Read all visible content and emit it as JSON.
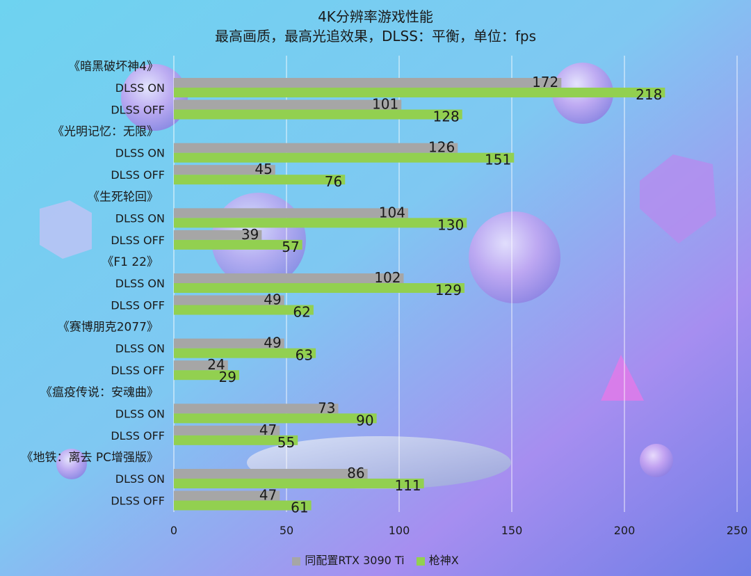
{
  "title": "4K分辨率游戏性能",
  "subtitle": "最高画质，最高光追效果，DLSS：平衡，单位：fps",
  "colors": {
    "series_a": "#a6a6a6",
    "series_b": "#92d050",
    "label_text": "#1a1a1a"
  },
  "chart_data": {
    "type": "bar",
    "orientation": "horizontal",
    "groups": [
      {
        "game": "《暗黑破坏神4》",
        "rows": [
          "DLSS ON",
          "DLSS OFF"
        ]
      },
      {
        "game": "《光明记忆：无限》",
        "rows": [
          "DLSS ON",
          "DLSS OFF"
        ]
      },
      {
        "game": "《生死轮回》",
        "rows": [
          "DLSS ON",
          "DLSS OFF"
        ]
      },
      {
        "game": "《F1 22》",
        "rows": [
          "DLSS ON",
          "DLSS OFF"
        ]
      },
      {
        "game": "《赛博朋克2077》",
        "rows": [
          "DLSS ON",
          "DLSS OFF"
        ]
      },
      {
        "game": "《瘟疫传说：安魂曲》",
        "rows": [
          "DLSS ON",
          "DLSS OFF"
        ]
      },
      {
        "game": "《地铁：离去 PC增强版》",
        "rows": [
          "DLSS ON",
          "DLSS OFF"
        ]
      }
    ],
    "series": [
      {
        "name": "同配置RTX 3090 Ti",
        "values": [
          [
            172,
            101
          ],
          [
            126,
            45
          ],
          [
            104,
            39
          ],
          [
            102,
            49
          ],
          [
            49,
            24
          ],
          [
            73,
            47
          ],
          [
            86,
            47
          ]
        ]
      },
      {
        "name": "枪神X",
        "values": [
          [
            218,
            128
          ],
          [
            151,
            76
          ],
          [
            130,
            57
          ],
          [
            129,
            62
          ],
          [
            63,
            29
          ],
          [
            90,
            55
          ],
          [
            111,
            61
          ]
        ]
      }
    ],
    "xlim": [
      0,
      250
    ],
    "xticks": [
      0,
      50,
      100,
      150,
      200,
      250
    ],
    "grid": true,
    "legend": "bottom"
  }
}
